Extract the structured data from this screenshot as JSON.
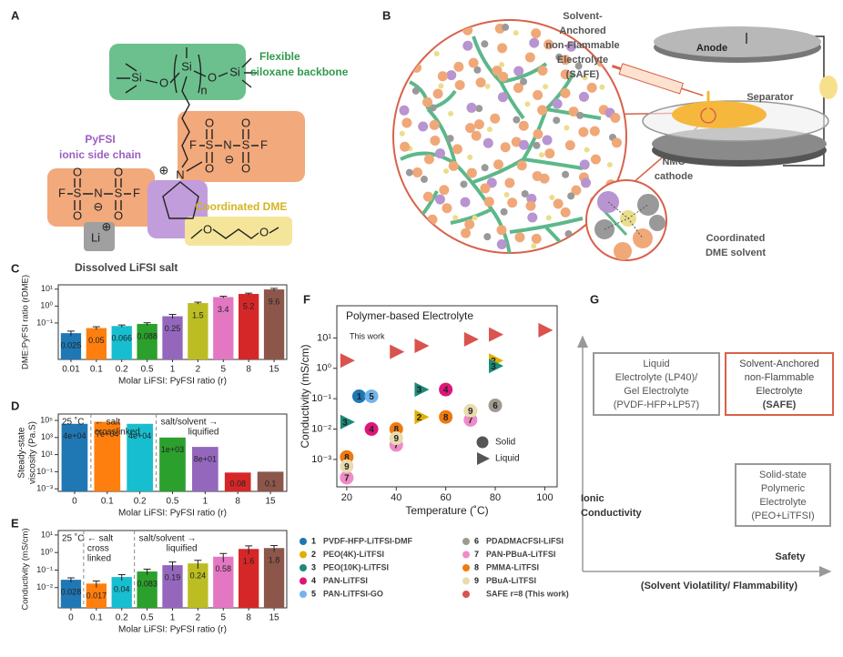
{
  "panel_labels": [
    "A",
    "B",
    "C",
    "D",
    "E",
    "F",
    "G"
  ],
  "panel_a": {
    "backbone_label": [
      "Flexible",
      "siloxane backbone"
    ],
    "side_chain_label": [
      "PyFSI",
      "ionic side chain"
    ],
    "dme_label": "Coordinated DME",
    "salt_label": "Dissolved LiFSI salt",
    "atoms": [
      "Si",
      "O",
      "Si",
      "n",
      "O",
      "Si",
      "O",
      "O",
      "F",
      "S",
      "N",
      "S",
      "F",
      "⊖",
      "O",
      "O",
      "⊕",
      "N",
      "O",
      "O",
      "F",
      "S",
      "N",
      "S",
      "F",
      "⊖",
      "O",
      "O",
      "Li",
      "⊕",
      "O",
      "O"
    ]
  },
  "panel_b": {
    "electrolyte_label": [
      "Solvent-",
      "Anchored",
      "non-Flammable",
      "Electrolyte",
      "(SAFE)"
    ],
    "anode": "Anode",
    "separator": "Separator",
    "cathode": [
      "NMC",
      "cathode"
    ],
    "solvent_label": [
      "Coordinated",
      "DME solvent"
    ]
  },
  "chart_data": [
    {
      "type": "bar",
      "log_y": true,
      "ylabel": "DME:PyFSI ratio (rDME)",
      "xlabel": "Molar LiFSI: PyFSI ratio (r)",
      "categories": [
        "0.01",
        "0.1",
        "0.2",
        "0.5",
        "1",
        "2",
        "5",
        "8",
        "15"
      ],
      "values": [
        0.025,
        0.05,
        0.066,
        0.088,
        0.25,
        1.5,
        3.4,
        5.2,
        9.6
      ],
      "errors": [
        0.008,
        0.01,
        0.01,
        0.015,
        0.07,
        0.2,
        0.4,
        0.6,
        1.5
      ],
      "colors": [
        "#1f77b4",
        "#ff7f0e",
        "#17becf",
        "#2ca02c",
        "#9467bd",
        "#bcbd22",
        "#e377c2",
        "#d62728",
        "#8c564b"
      ],
      "ylim": [
        0.0007,
        18
      ],
      "yticks": [
        {
          "value": 0.1,
          "label": "10⁻¹"
        },
        {
          "value": 1,
          "label": "10⁰"
        },
        {
          "value": 10,
          "label": "10¹"
        }
      ]
    },
    {
      "type": "bar",
      "log_y": true,
      "ylabel": [
        "Steady-state",
        "viscosity (Pa.S)"
      ],
      "xlabel": "Molar LiFSI: PyFSI ratio (r)",
      "annotations": [
        "25 ˚C",
        [
          "← salt",
          "crosslinked"
        ],
        [
          "salt/solvent →",
          "liquified"
        ]
      ],
      "categories": [
        "0",
        "0.1",
        "0.2",
        "0.5",
        "1",
        "8",
        "15"
      ],
      "values": [
        40000,
        70000,
        40000,
        1000,
        80,
        0.08,
        0.1
      ],
      "value_labels": [
        "4e+04",
        "7e+04",
        "4e+04",
        "1e+03",
        "8e+01",
        "0.08",
        "0.1"
      ],
      "colors": [
        "#1f77b4",
        "#ff7f0e",
        "#17becf",
        "#2ca02c",
        "#9467bd",
        "#d62728",
        "#8c564b"
      ],
      "ylim": [
        0.0005,
        560000
      ],
      "yticks": [
        {
          "value": 0.001,
          "label": "10⁻³"
        },
        {
          "value": 0.1,
          "label": "10⁻¹"
        },
        {
          "value": 10,
          "label": "10¹"
        },
        {
          "value": 1000,
          "label": "10³"
        },
        {
          "value": 100000,
          "label": "10⁵"
        }
      ]
    },
    {
      "type": "bar",
      "log_y": true,
      "ylabel": "Conductivity (mS/cm)",
      "xlabel": "Molar LiFSI: PyFSI ratio (r)",
      "annotations": [
        "25 ˚C",
        [
          "← salt",
          "cross",
          "linked"
        ],
        [
          "salt/solvent →",
          "liquified"
        ]
      ],
      "categories": [
        "0",
        "0.1",
        "0.2",
        "0.5",
        "1",
        "2",
        "5",
        "8",
        "15"
      ],
      "values": [
        0.028,
        0.017,
        0.04,
        0.083,
        0.19,
        0.24,
        0.58,
        1.6,
        1.8
      ],
      "errors": [
        0.008,
        0.007,
        0.015,
        0.03,
        0.1,
        0.12,
        0.3,
        0.8,
        0.7
      ],
      "colors": [
        "#1f77b4",
        "#ff7f0e",
        "#17becf",
        "#2ca02c",
        "#9467bd",
        "#bcbd22",
        "#e377c2",
        "#d62728",
        "#8c564b"
      ],
      "ylim": [
        0.0007,
        18
      ],
      "yticks": [
        {
          "value": 0.01,
          "label": "10⁻²"
        },
        {
          "value": 0.1,
          "label": "10⁻¹"
        },
        {
          "value": 1,
          "label": "10⁰"
        },
        {
          "value": 10,
          "label": "10¹"
        }
      ]
    },
    {
      "type": "scatter",
      "log_y": true,
      "title": "Polymer-based Electrolyte",
      "annotation": "This work",
      "xlabel": "Temperature (˚C)",
      "ylabel": "Conductivity (mS/cm)",
      "xlim": [
        16,
        105
      ],
      "xticks": [
        20,
        40,
        60,
        80,
        100
      ],
      "ylim": [
        0.000125,
        115
      ],
      "yticks": [
        {
          "value": 0.001,
          "label": "10⁻³"
        },
        {
          "value": 0.01,
          "label": "10⁻²"
        },
        {
          "value": 0.1,
          "label": "10⁻¹"
        },
        {
          "value": 1,
          "label": "10⁰"
        },
        {
          "value": 10,
          "label": "10¹"
        }
      ],
      "marker_legend": [
        {
          "label": "Solid",
          "marker": "circle"
        },
        {
          "label": "Liquid",
          "marker": "triangle"
        }
      ],
      "series": [
        {
          "label": "1",
          "name": "PVDF-HFP-LiTFSI-DMF",
          "color": "#1f77b4",
          "marker": "circle",
          "x": [
            25
          ],
          "y": [
            0.12
          ]
        },
        {
          "label": "2",
          "name": "PEO(4K)-LiTFSI",
          "color": "#e0b000",
          "marker": "triangle",
          "x": [
            50,
            80
          ],
          "y": [
            0.025,
            1.8
          ]
        },
        {
          "label": "3",
          "name": "PEO(10K)-LiTFSI",
          "color": "#1b8a78",
          "marker": "triangle",
          "x": [
            20,
            50,
            80
          ],
          "y": [
            0.017,
            0.2,
            1.2
          ]
        },
        {
          "label": "4",
          "name": "PAN-LiTFSI",
          "color": "#e0157a",
          "marker": "circle",
          "x": [
            30,
            60
          ],
          "y": [
            0.01,
            0.2
          ]
        },
        {
          "label": "5",
          "name": "PAN-LiTFSI-GO",
          "color": "#74b4ec",
          "marker": "circle",
          "x": [
            30
          ],
          "y": [
            0.12
          ]
        },
        {
          "label": "6",
          "name": "PDADMACFSI-LiFSI",
          "color": "#a09a90",
          "marker": "circle",
          "x": [
            80
          ],
          "y": [
            0.06
          ]
        },
        {
          "label": "7",
          "name": "PAN-PBuA-LiTFSI",
          "color": "#f08ac8",
          "marker": "circle",
          "x": [
            20,
            40,
            70
          ],
          "y": [
            0.00025,
            0.003,
            0.02
          ]
        },
        {
          "label": "8",
          "name": "PMMA-LiTFSI",
          "color": "#f07a10",
          "marker": "circle",
          "x": [
            20,
            40,
            60
          ],
          "y": [
            0.0012,
            0.01,
            0.025
          ]
        },
        {
          "label": "9",
          "name": "PBuA-LiTFSI",
          "color": "#e8dcae",
          "marker": "circle",
          "x": [
            20,
            40,
            70
          ],
          "y": [
            0.0006,
            0.005,
            0.04
          ]
        },
        {
          "name": "SAFE r=8 (This work)",
          "color": "#d9534f",
          "marker": "triangle",
          "x": [
            20,
            40,
            50,
            70,
            80,
            100
          ],
          "y": [
            1.8,
            3.5,
            5.5,
            9,
            13,
            18
          ]
        }
      ]
    }
  ],
  "panel_g": {
    "liquid_box": [
      "Liquid",
      "Electrolyte (LP40)/",
      "Gel Electrolyte",
      "(PVDF-HFP+LP57)"
    ],
    "safe_box": [
      "Solvent-Anchored",
      "non-Flammable",
      "Electrolyte",
      "(SAFE)"
    ],
    "solid_box": [
      "Solid-state",
      "Polymeric",
      "Electrolyte",
      "(PEO+LiTFSI)"
    ],
    "y_axis_label": [
      "Ionic",
      "Conductivity"
    ],
    "x_axis_label": [
      "Safety",
      "(Solvent Violatility/ Flammability)"
    ]
  }
}
